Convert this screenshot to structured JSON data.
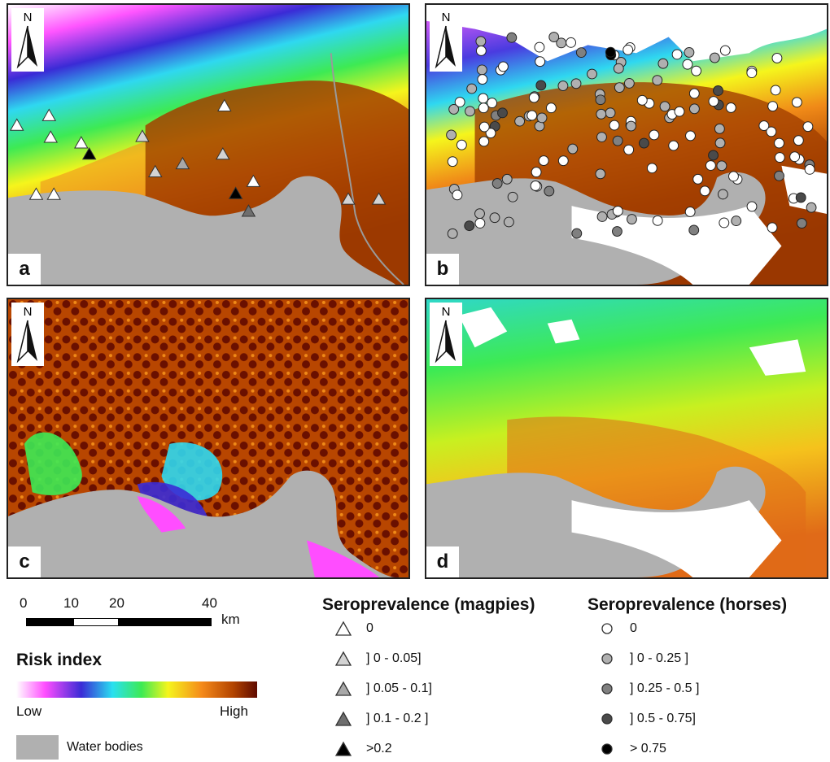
{
  "panels": [
    {
      "label": "a"
    },
    {
      "label": "b"
    },
    {
      "label": "c"
    },
    {
      "label": "d"
    }
  ],
  "north_label": "N",
  "scale_bar": {
    "ticks": [
      "0",
      "10",
      "20",
      "40"
    ],
    "unit": "km"
  },
  "risk_legend": {
    "title": "Risk index",
    "low": "Low",
    "high": "High",
    "colors": [
      "#ffffff",
      "#ff4dff",
      "#3a2bd6",
      "#29e0f0",
      "#3dea54",
      "#f5f51c",
      "#f58a1a",
      "#b34400",
      "#5e0a00"
    ]
  },
  "water_legend": {
    "label": "Water bodies",
    "color": "#b0b0b0"
  },
  "magpies_legend": {
    "title": "Seroprevalence (magpies)",
    "items": [
      {
        "label": "0",
        "color": "#ffffff"
      },
      {
        "label": "] 0 - 0.05]",
        "color": "#d3d3d3"
      },
      {
        "label": "] 0.05 - 0.1]",
        "color": "#a8a8a8"
      },
      {
        "label": "] 0.1 - 0.2 ]",
        "color": "#6e6e6e"
      },
      {
        "label": ">0.2",
        "color": "#000000"
      }
    ]
  },
  "horses_legend": {
    "title": "Seroprevalence (horses)",
    "items": [
      {
        "label": "0",
        "color": "#ffffff"
      },
      {
        "label": "] 0 - 0.25 ]",
        "color": "#b0b0b0"
      },
      {
        "label": "] 0.25 - 0.5 ]",
        "color": "#808080"
      },
      {
        "label": "] 0.5 - 0.75]",
        "color": "#4a4a4a"
      },
      {
        "label": "> 0.75",
        "color": "#000000"
      }
    ]
  }
}
